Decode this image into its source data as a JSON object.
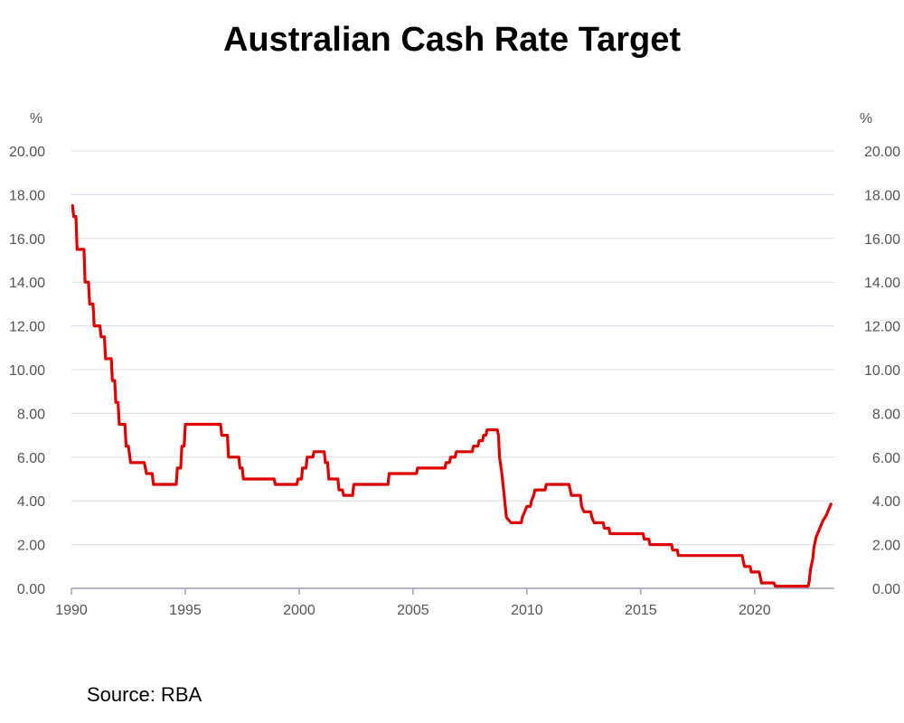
{
  "chart_data": {
    "type": "line",
    "title": "Australian Cash Rate Target",
    "y_unit_left": "%",
    "y_unit_right": "%",
    "source": "Source:   RBA",
    "xlim": [
      1990,
      2023.5
    ],
    "ylim": [
      0,
      20
    ],
    "x_ticks": [
      1990,
      1995,
      2000,
      2005,
      2010,
      2015,
      2020
    ],
    "x_tick_labels": [
      "1990",
      "1995",
      "2000",
      "2005",
      "2010",
      "2015",
      "2020"
    ],
    "y_ticks": [
      0,
      2,
      4,
      6,
      8,
      10,
      12,
      14,
      16,
      18,
      20
    ],
    "y_tick_labels": [
      "0.00",
      "2.00",
      "4.00",
      "6.00",
      "8.00",
      "10.00",
      "12.00",
      "14.00",
      "16.00",
      "18.00",
      "20.00"
    ],
    "grid": true,
    "series": [
      {
        "color": "#dd0000",
        "points": [
          [
            1990.05,
            17.5
          ],
          [
            1990.1,
            17.0
          ],
          [
            1990.2,
            17.0
          ],
          [
            1990.25,
            15.5
          ],
          [
            1990.55,
            15.5
          ],
          [
            1990.6,
            14.0
          ],
          [
            1990.75,
            14.0
          ],
          [
            1990.8,
            13.0
          ],
          [
            1990.95,
            13.0
          ],
          [
            1991.0,
            12.0
          ],
          [
            1991.25,
            12.0
          ],
          [
            1991.3,
            11.5
          ],
          [
            1991.45,
            11.5
          ],
          [
            1991.5,
            10.5
          ],
          [
            1991.75,
            10.5
          ],
          [
            1991.8,
            9.5
          ],
          [
            1991.9,
            9.5
          ],
          [
            1991.95,
            8.5
          ],
          [
            1992.05,
            8.5
          ],
          [
            1992.1,
            7.5
          ],
          [
            1992.35,
            7.5
          ],
          [
            1992.4,
            6.5
          ],
          [
            1992.5,
            6.5
          ],
          [
            1992.6,
            5.75
          ],
          [
            1993.2,
            5.75
          ],
          [
            1993.3,
            5.25
          ],
          [
            1993.55,
            5.25
          ],
          [
            1993.6,
            4.75
          ],
          [
            1994.6,
            4.75
          ],
          [
            1994.65,
            5.5
          ],
          [
            1994.8,
            5.5
          ],
          [
            1994.85,
            6.5
          ],
          [
            1994.95,
            6.5
          ],
          [
            1995.0,
            7.5
          ],
          [
            1996.55,
            7.5
          ],
          [
            1996.6,
            7.0
          ],
          [
            1996.85,
            7.0
          ],
          [
            1996.9,
            6.0
          ],
          [
            1997.35,
            6.0
          ],
          [
            1997.4,
            5.5
          ],
          [
            1997.5,
            5.5
          ],
          [
            1997.55,
            5.0
          ],
          [
            1998.9,
            5.0
          ],
          [
            1998.95,
            4.75
          ],
          [
            1999.9,
            4.75
          ],
          [
            1999.95,
            5.0
          ],
          [
            2000.1,
            5.0
          ],
          [
            2000.15,
            5.5
          ],
          [
            2000.3,
            5.5
          ],
          [
            2000.35,
            6.0
          ],
          [
            2000.6,
            6.0
          ],
          [
            2000.65,
            6.25
          ],
          [
            2001.1,
            6.25
          ],
          [
            2001.15,
            5.75
          ],
          [
            2001.25,
            5.75
          ],
          [
            2001.3,
            5.0
          ],
          [
            2001.7,
            5.0
          ],
          [
            2001.75,
            4.5
          ],
          [
            2001.9,
            4.5
          ],
          [
            2001.95,
            4.25
          ],
          [
            2002.35,
            4.25
          ],
          [
            2002.4,
            4.75
          ],
          [
            2003.9,
            4.75
          ],
          [
            2003.95,
            5.25
          ],
          [
            2005.15,
            5.25
          ],
          [
            2005.2,
            5.5
          ],
          [
            2006.4,
            5.5
          ],
          [
            2006.45,
            5.75
          ],
          [
            2006.6,
            5.75
          ],
          [
            2006.65,
            6.0
          ],
          [
            2006.85,
            6.0
          ],
          [
            2006.9,
            6.25
          ],
          [
            2007.6,
            6.25
          ],
          [
            2007.65,
            6.5
          ],
          [
            2007.85,
            6.5
          ],
          [
            2007.9,
            6.75
          ],
          [
            2008.05,
            6.75
          ],
          [
            2008.1,
            7.0
          ],
          [
            2008.2,
            7.0
          ],
          [
            2008.25,
            7.25
          ],
          [
            2008.7,
            7.25
          ],
          [
            2008.75,
            7.0
          ],
          [
            2008.8,
            6.0
          ],
          [
            2008.9,
            5.25
          ],
          [
            2009.0,
            4.25
          ],
          [
            2009.1,
            3.25
          ],
          [
            2009.3,
            3.0
          ],
          [
            2009.75,
            3.0
          ],
          [
            2009.8,
            3.25
          ],
          [
            2009.9,
            3.5
          ],
          [
            2010.0,
            3.75
          ],
          [
            2010.15,
            3.75
          ],
          [
            2010.2,
            4.0
          ],
          [
            2010.3,
            4.25
          ],
          [
            2010.35,
            4.5
          ],
          [
            2010.8,
            4.5
          ],
          [
            2010.85,
            4.75
          ],
          [
            2011.85,
            4.75
          ],
          [
            2011.9,
            4.5
          ],
          [
            2011.95,
            4.25
          ],
          [
            2012.35,
            4.25
          ],
          [
            2012.4,
            3.75
          ],
          [
            2012.5,
            3.5
          ],
          [
            2012.8,
            3.5
          ],
          [
            2012.85,
            3.25
          ],
          [
            2012.95,
            3.0
          ],
          [
            2013.35,
            3.0
          ],
          [
            2013.4,
            2.75
          ],
          [
            2013.6,
            2.75
          ],
          [
            2013.65,
            2.5
          ],
          [
            2015.1,
            2.5
          ],
          [
            2015.15,
            2.25
          ],
          [
            2015.35,
            2.25
          ],
          [
            2015.4,
            2.0
          ],
          [
            2016.35,
            2.0
          ],
          [
            2016.4,
            1.75
          ],
          [
            2016.6,
            1.75
          ],
          [
            2016.65,
            1.5
          ],
          [
            2019.45,
            1.5
          ],
          [
            2019.5,
            1.25
          ],
          [
            2019.55,
            1.0
          ],
          [
            2019.8,
            1.0
          ],
          [
            2019.85,
            0.75
          ],
          [
            2020.2,
            0.75
          ],
          [
            2020.25,
            0.5
          ],
          [
            2020.3,
            0.25
          ],
          [
            2020.85,
            0.25
          ],
          [
            2020.9,
            0.1
          ],
          [
            2022.35,
            0.1
          ],
          [
            2022.4,
            0.35
          ],
          [
            2022.45,
            0.85
          ],
          [
            2022.55,
            1.35
          ],
          [
            2022.6,
            1.85
          ],
          [
            2022.7,
            2.35
          ],
          [
            2022.8,
            2.6
          ],
          [
            2022.9,
            2.85
          ],
          [
            2023.0,
            3.1
          ],
          [
            2023.15,
            3.35
          ],
          [
            2023.25,
            3.6
          ],
          [
            2023.35,
            3.85
          ]
        ]
      }
    ]
  }
}
